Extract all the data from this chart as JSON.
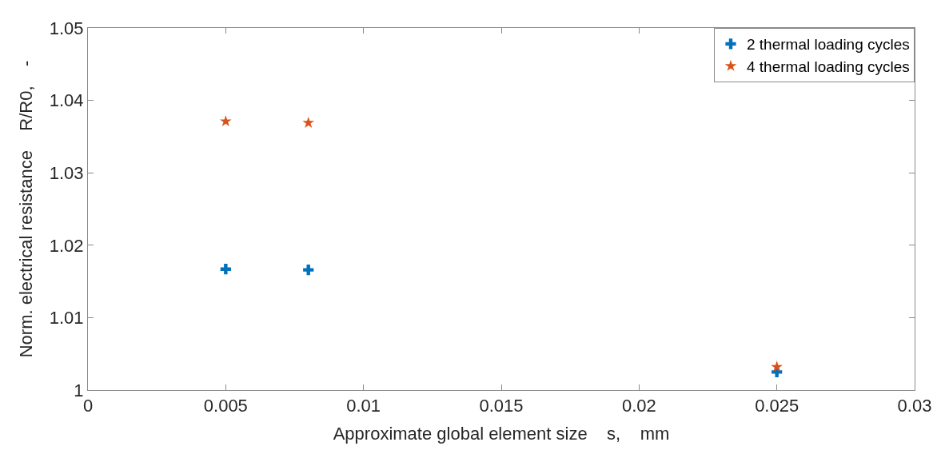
{
  "chart_data": {
    "type": "scatter",
    "xlabel": "Approximate global element size    s,    mm",
    "ylabel": "Norm. electrical resistance    R/R0,    -",
    "series": [
      {
        "name": "2 thermal loading cycles",
        "color": "#0072bd",
        "marker": "cross",
        "x": [
          0.005,
          0.008,
          0.025
        ],
        "values": [
          1.0167,
          1.0166,
          1.0025
        ]
      },
      {
        "name": "4 thermal loading cycles",
        "color": "#d95319",
        "marker": "star",
        "x": [
          0.005,
          0.008,
          0.025
        ],
        "values": [
          1.0371,
          1.0369,
          1.0032
        ]
      }
    ],
    "xlim": [
      0,
      0.03
    ],
    "xticks": [
      0,
      0.005,
      0.01,
      0.015,
      0.02,
      0.025,
      0.03
    ],
    "ylim": [
      1,
      1.05
    ],
    "yticks": [
      1,
      1.01,
      1.02,
      1.03,
      1.04,
      1.05
    ],
    "legend": "top right"
  }
}
